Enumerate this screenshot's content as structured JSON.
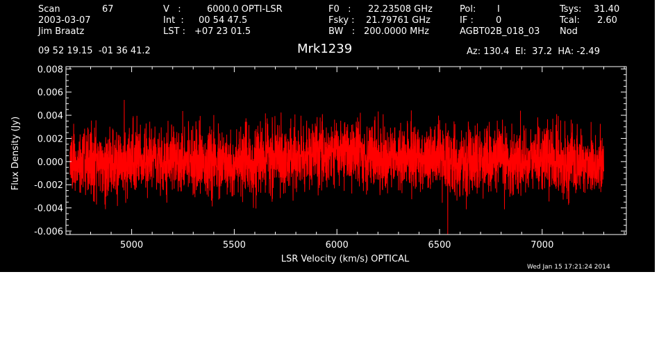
{
  "header": {
    "scan_label": "Scan",
    "scan_value": "67",
    "date": "2003-03-07",
    "observer": "Jim Braatz",
    "v_label": "V   :",
    "v_value": "6000.0 OPTI-LSR",
    "int_label": "Int  :",
    "int_value": "00 54 47.5",
    "lst_label": "LST :",
    "lst_value": "+07 23 01.5",
    "f0_label": "F0   :",
    "f0_value": "22.23508 GHz",
    "fsky_label": "Fsky :",
    "fsky_value": "21.79761 GHz",
    "bw_label": "BW   :",
    "bw_value": "200.0000 MHz",
    "pol_label": "Pol:",
    "pol_value": "I",
    "if_label": "IF :",
    "if_value": "0",
    "project": "AGBT02B_018_03",
    "tsys_label": "Tsys:",
    "tsys_value": "31.40",
    "tcal_label": "Tcal:",
    "tcal_value": "2.60",
    "mode": "Nod",
    "coords": "09 52 19.15  -01 36 41.2",
    "source": "Mrk1239",
    "az_el_ha": "Az: 130.4  El:  37.2  HA: -2.49",
    "timestamp": "Wed Jan 15 17:21:24 2014"
  },
  "chart_data": {
    "type": "line",
    "xlabel": "LSR Velocity (km/s) OPTICAL",
    "ylabel": "Flux Density (Jy)",
    "xlim": [
      4680,
      7410
    ],
    "ylim": [
      -0.0063,
      0.0082
    ],
    "x_ticks": [
      5000,
      5500,
      6000,
      6500,
      7000
    ],
    "x_tick_labels": [
      "5000",
      "5500",
      "6000",
      "6500",
      "7000"
    ],
    "y_ticks": [
      -0.006,
      -0.004,
      -0.002,
      0.0,
      0.002,
      0.004,
      0.006,
      0.008
    ],
    "y_tick_labels": [
      "-0.006",
      "-0.004",
      "-0.002",
      "0.000",
      "0.002",
      "0.004",
      "0.006",
      "0.008"
    ],
    "grid": false,
    "series": [
      {
        "color": "#ff0000",
        "x": [
          4700,
          4800,
          4900,
          5000,
          5100,
          5200,
          5300,
          5400,
          5500,
          5600,
          5700,
          5800,
          5900,
          6000,
          6100,
          6200,
          6300,
          6400,
          6500,
          6600,
          6700,
          6800,
          6900,
          7000,
          7100,
          7200,
          7300
        ],
        "y": [
          0.0,
          0.0001,
          -0.0002,
          0.0,
          0.0002,
          0.0004,
          0.0003,
          -0.0002,
          -0.0004,
          0.0,
          0.0004,
          0.0002,
          0.0006,
          0.0009,
          0.0008,
          0.0004,
          0.0002,
          0.0004,
          0.0002,
          -0.0002,
          0.0003,
          0.0001,
          0.0,
          0.0004,
          0.0,
          -0.0001,
          -0.0003
        ],
        "noise_rms": 0.0014
      }
    ]
  }
}
